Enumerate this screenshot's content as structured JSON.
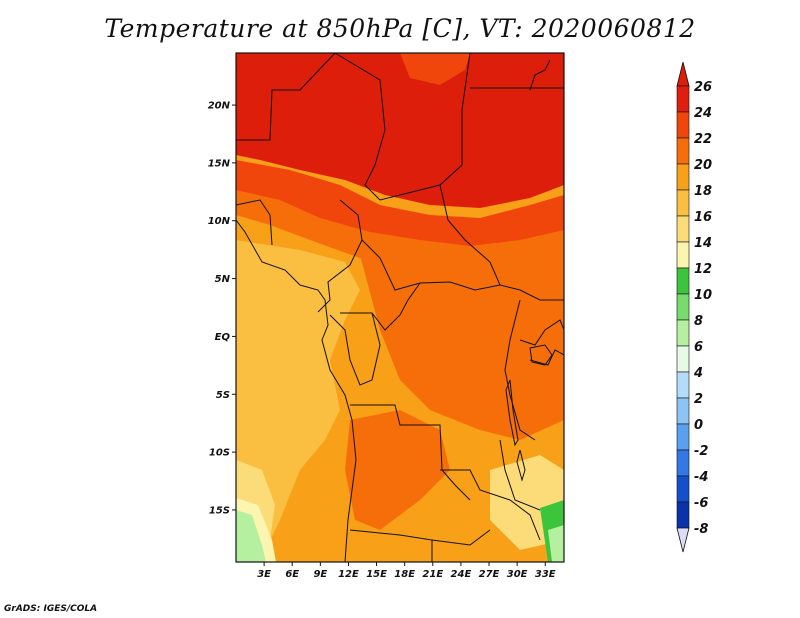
{
  "title": "Temperature at 850hPa [C], VT: 2020060812",
  "credit": "GrADS: IGES/COLA",
  "y_ticks": [
    {
      "label": "20N",
      "lat": 20
    },
    {
      "label": "15N",
      "lat": 15
    },
    {
      "label": "10N",
      "lat": 10
    },
    {
      "label": "5N",
      "lat": 5
    },
    {
      "label": "EQ",
      "lat": 0
    },
    {
      "label": "5S",
      "lat": -5
    },
    {
      "label": "10S",
      "lat": -10
    },
    {
      "label": "15S",
      "lat": -15
    }
  ],
  "x_ticks": [
    {
      "label": "3E",
      "lon": 3
    },
    {
      "label": "6E",
      "lon": 6
    },
    {
      "label": "9E",
      "lon": 9
    },
    {
      "label": "12E",
      "lon": 12
    },
    {
      "label": "15E",
      "lon": 15
    },
    {
      "label": "18E",
      "lon": 18
    },
    {
      "label": "21E",
      "lon": 21
    },
    {
      "label": "24E",
      "lon": 24
    },
    {
      "label": "27E",
      "lon": 27
    },
    {
      "label": "30E",
      "lon": 30
    },
    {
      "label": "33E",
      "lon": 33
    }
  ],
  "colorbar": {
    "labels": [
      "26",
      "24",
      "22",
      "20",
      "18",
      "16",
      "14",
      "12",
      "10",
      "8",
      "6",
      "4",
      "2",
      "0",
      "-2",
      "-4",
      "-6",
      "-8"
    ],
    "colors_top_to_bottom": [
      "#e01e0e",
      "#f0460c",
      "#f56e0a",
      "#f8a018",
      "#fabe40",
      "#fcdc78",
      "#fcf5b0",
      "#3cc43c",
      "#78dc6c",
      "#b4f0a0",
      "#e6fae6",
      "#b4dcfa",
      "#8cc4f5",
      "#5aa0f0",
      "#3278e6",
      "#1450cd",
      "#0a32aa",
      "#001482"
    ],
    "top_arrow_color": "#dc1e0a",
    "bottom_arrow_color": "#dcdcf5"
  },
  "map": {
    "lon_min": 0,
    "lon_max": 35,
    "lat_min": -19.5,
    "lat_max": 24.5,
    "field_colors": {
      "c26": "#dc1e0a",
      "c24": "#f0460c",
      "c22": "#f56e0a",
      "c20": "#f8a018",
      "c18": "#fabe40",
      "c16": "#fcdc78",
      "c14": "#fcf5b0",
      "c8": "#b4f0a0",
      "c12": "#3cc43c"
    }
  }
}
